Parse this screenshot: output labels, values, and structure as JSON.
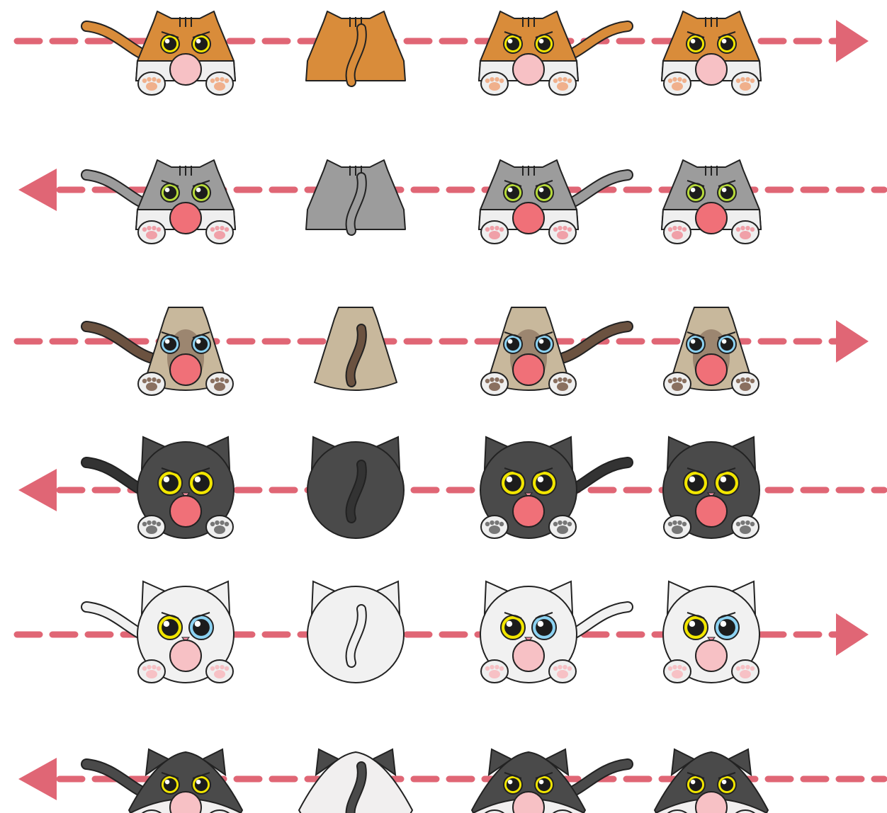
{
  "sheet": {
    "rows": [
      {
        "name": "orange-tabby",
        "direction": "right",
        "shape": "trapezoid",
        "stripes": true,
        "body": "#D98C3A",
        "belly": "#EFEFEF",
        "mouth": "#F7C1C5",
        "eye": "#F2E600",
        "tail": "#D98C3A",
        "paw": "#F0B08C"
      },
      {
        "name": "gray-tabby",
        "direction": "left",
        "shape": "trapezoid",
        "stripes": true,
        "body": "#9C9C9C",
        "belly": "#EFEFEF",
        "mouth": "#F07078",
        "eye": "#B8DC3A",
        "tail": "#9C9C9C",
        "paw": "#F0A0A8"
      },
      {
        "name": "siamese",
        "direction": "right",
        "shape": "triangle",
        "stripes": false,
        "body": "#C8B89C",
        "belly": "#9C8670",
        "mouth": "#F07078",
        "eye": "#8DD3F3",
        "tail": "#6B5240",
        "paw": "#8A7060"
      },
      {
        "name": "black-cat",
        "direction": "left",
        "shape": "circle",
        "stripes": false,
        "body": "#4A4A4A",
        "belly": "#4A4A4A",
        "mouth": "#F07078",
        "eye": "#F2E600",
        "tail": "#333333",
        "paw": "#777777"
      },
      {
        "name": "white-cat",
        "direction": "right",
        "shape": "circle",
        "stripes": false,
        "body": "#F1F1F1",
        "belly": "#F1F1F1",
        "mouth": "#F7C1C5",
        "eye": "#F2E600",
        "eye2": "#8DD3F3",
        "tail": "#F1F1F1",
        "paw": "#F7C1C5"
      },
      {
        "name": "tuxedo-cat",
        "direction": "left",
        "shape": "wide",
        "stripes": false,
        "body": "#4A4A4A",
        "belly": "#F1EFEF",
        "mouth": "#F7C1C5",
        "eye": "#F2E600",
        "tail": "#4A4A4A",
        "paw": "#F7C1C5"
      }
    ],
    "poses": [
      "front-tail-left",
      "back",
      "front-tail-right",
      "front"
    ],
    "arrow_color": "#E06675",
    "outline_color": "#222222"
  }
}
